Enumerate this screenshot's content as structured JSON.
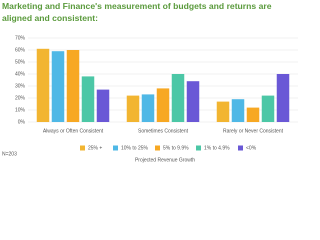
{
  "chart_data": {
    "type": "bar",
    "title": "Marketing and Finance's measurement of budgets and returns are aligned and consistent:",
    "categories": [
      "Always or Often Consistent",
      "Sometimes Consistent",
      "Rarely or Never Consistent"
    ],
    "series": [
      {
        "name": "25% +",
        "color": "#f2b531",
        "values": [
          61,
          22,
          17
        ]
      },
      {
        "name": "10% to 25%",
        "color": "#4fb8e6",
        "values": [
          59,
          23,
          19
        ]
      },
      {
        "name": "5% to 9.9%",
        "color": "#f7a823",
        "values": [
          60,
          28,
          12
        ]
      },
      {
        "name": "1% to 4.9%",
        "color": "#4cc7a6",
        "values": [
          38,
          40,
          22
        ]
      },
      {
        "name": "<0%",
        "color": "#6a58d6",
        "values": [
          27,
          34,
          40
        ]
      }
    ],
    "ylim": [
      0,
      70
    ],
    "yticks": [
      {
        "value": 0,
        "label": "0%"
      },
      {
        "value": 10,
        "label": "10%"
      },
      {
        "value": 20,
        "label": "20%"
      },
      {
        "value": 30,
        "label": "30%"
      },
      {
        "value": 40,
        "label": "40%"
      },
      {
        "value": 50,
        "label": "50%"
      },
      {
        "value": 60,
        "label": "60%"
      },
      {
        "value": 70,
        "label": "70%"
      }
    ],
    "grid": true,
    "xlabel": "Projected Revenue Growth",
    "note": "N=203"
  }
}
